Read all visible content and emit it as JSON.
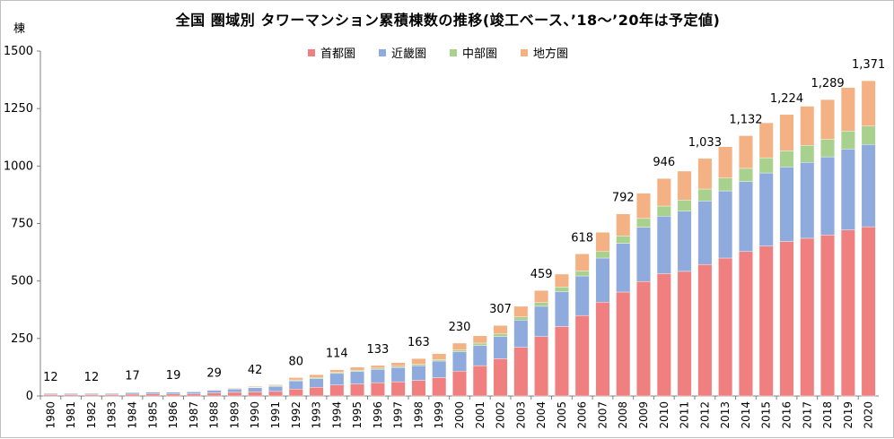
{
  "chart_data": {
    "type": "bar",
    "stacked": true,
    "title": "全国 圏域別 タワーマンション累積棟数の推移(竣工ベース、’18～’20年は予定値)",
    "ylabel": "棟",
    "ylim": [
      0,
      1500
    ],
    "yticks": [
      0,
      250,
      500,
      750,
      1000,
      1250,
      1500
    ],
    "grid": false,
    "legend_position": "top",
    "categories": [
      "1980",
      "1981",
      "1982",
      "1983",
      "1984",
      "1985",
      "1986",
      "1987",
      "1988",
      "1989",
      "1990",
      "1991",
      "1992",
      "1993",
      "1994",
      "1995",
      "1996",
      "1997",
      "1998",
      "1999",
      "2000",
      "2001",
      "2002",
      "2003",
      "2004",
      "2005",
      "2006",
      "2007",
      "2008",
      "2009",
      "2010",
      "2011",
      "2012",
      "2013",
      "2014",
      "2015",
      "2016",
      "2017",
      "2018",
      "2019",
      "2020"
    ],
    "series": [
      {
        "name": "首都圏",
        "color": "#f08080",
        "values": [
          6,
          6,
          6,
          6,
          8,
          9,
          9,
          9,
          13,
          16,
          18,
          20,
          30,
          38,
          48,
          52,
          58,
          62,
          68,
          80,
          108,
          132,
          162,
          212,
          258,
          302,
          350,
          408,
          452,
          498,
          532,
          542,
          572,
          600,
          628,
          652,
          672,
          686,
          700,
          722,
          736
        ]
      },
      {
        "name": "近畿圏",
        "color": "#8faadc",
        "values": [
          5,
          5,
          5,
          5,
          7,
          8,
          8,
          9,
          12,
          14,
          18,
          22,
          36,
          38,
          50,
          55,
          58,
          62,
          64,
          72,
          84,
          88,
          96,
          118,
          132,
          152,
          172,
          192,
          212,
          236,
          250,
          262,
          276,
          292,
          304,
          318,
          324,
          330,
          340,
          352,
          358
        ]
      },
      {
        "name": "中部圏",
        "color": "#a9d18e",
        "values": [
          0,
          0,
          0,
          0,
          1,
          1,
          1,
          1,
          2,
          2,
          2,
          3,
          4,
          5,
          5,
          5,
          5,
          5,
          6,
          6,
          8,
          10,
          12,
          14,
          16,
          20,
          22,
          28,
          32,
          38,
          44,
          48,
          52,
          56,
          58,
          66,
          70,
          74,
          76,
          78,
          80
        ]
      },
      {
        "name": "地方圏",
        "color": "#f4b183",
        "values": [
          1,
          1,
          1,
          1,
          1,
          2,
          1,
          2,
          2,
          3,
          4,
          4,
          10,
          12,
          11,
          14,
          12,
          16,
          25,
          26,
          30,
          32,
          37,
          46,
          53,
          56,
          74,
          84,
          96,
          110,
          120,
          126,
          133,
          136,
          142,
          152,
          158,
          170,
          173,
          189,
          197
        ]
      }
    ],
    "data_labels": [
      {
        "category": "1980",
        "text": "12"
      },
      {
        "category": "1982",
        "text": "12"
      },
      {
        "category": "1984",
        "text": "17"
      },
      {
        "category": "1986",
        "text": "19"
      },
      {
        "category": "1988",
        "text": "29"
      },
      {
        "category": "1990",
        "text": "42"
      },
      {
        "category": "1992",
        "text": "80"
      },
      {
        "category": "1994",
        "text": "114"
      },
      {
        "category": "1996",
        "text": "133"
      },
      {
        "category": "1998",
        "text": "163"
      },
      {
        "category": "2000",
        "text": "230"
      },
      {
        "category": "2002",
        "text": "307"
      },
      {
        "category": "2004",
        "text": "459"
      },
      {
        "category": "2006",
        "text": "618"
      },
      {
        "category": "2008",
        "text": "792"
      },
      {
        "category": "2010",
        "text": "946"
      },
      {
        "category": "2012",
        "text": "1,033"
      },
      {
        "category": "2014",
        "text": "1,132"
      },
      {
        "category": "2016",
        "text": "1,224"
      },
      {
        "category": "2018",
        "text": "1,289"
      },
      {
        "category": "2020",
        "text": "1,371"
      }
    ]
  }
}
